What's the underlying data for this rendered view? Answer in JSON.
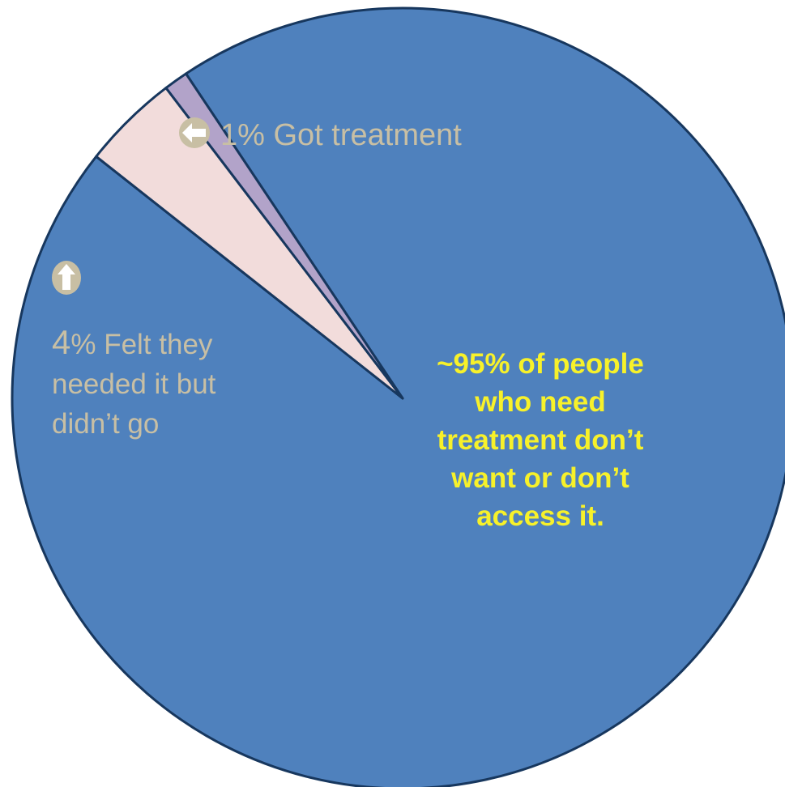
{
  "chart_data": {
    "type": "pie",
    "slices": [
      {
        "label": "1% Got treatment",
        "value": 1,
        "color": "#b2a3c9"
      },
      {
        "label": "4% Felt they needed it but didn’t go",
        "value": 4,
        "color": "#f2dcdb"
      },
      {
        "label": "~95% of people who need treatment don’t want or don’t access it.",
        "value": 95,
        "color": "#4f81bd"
      }
    ],
    "colors": {
      "main": "#4f81bd",
      "got_treatment": "#b2a3c9",
      "felt_needed": "#f2dcdb",
      "outline": "#17375e",
      "label_text": "#c8bfa4",
      "highlight_text": "#f7f12a"
    },
    "icons": {
      "got_treatment": "arrow-left-icon",
      "felt_needed": "arrow-up-icon"
    },
    "labels": {
      "got_treatment": "1% Got treatment",
      "felt_needed_number": "4",
      "felt_needed_line1": "% Felt they",
      "felt_needed_line2": "needed it but",
      "felt_needed_line3": "didn’t go",
      "main_line1": "~95% of people",
      "main_line2": "who need",
      "main_line3": "treatment don’t",
      "main_line4": "want or don’t",
      "main_line5": "access it."
    }
  }
}
